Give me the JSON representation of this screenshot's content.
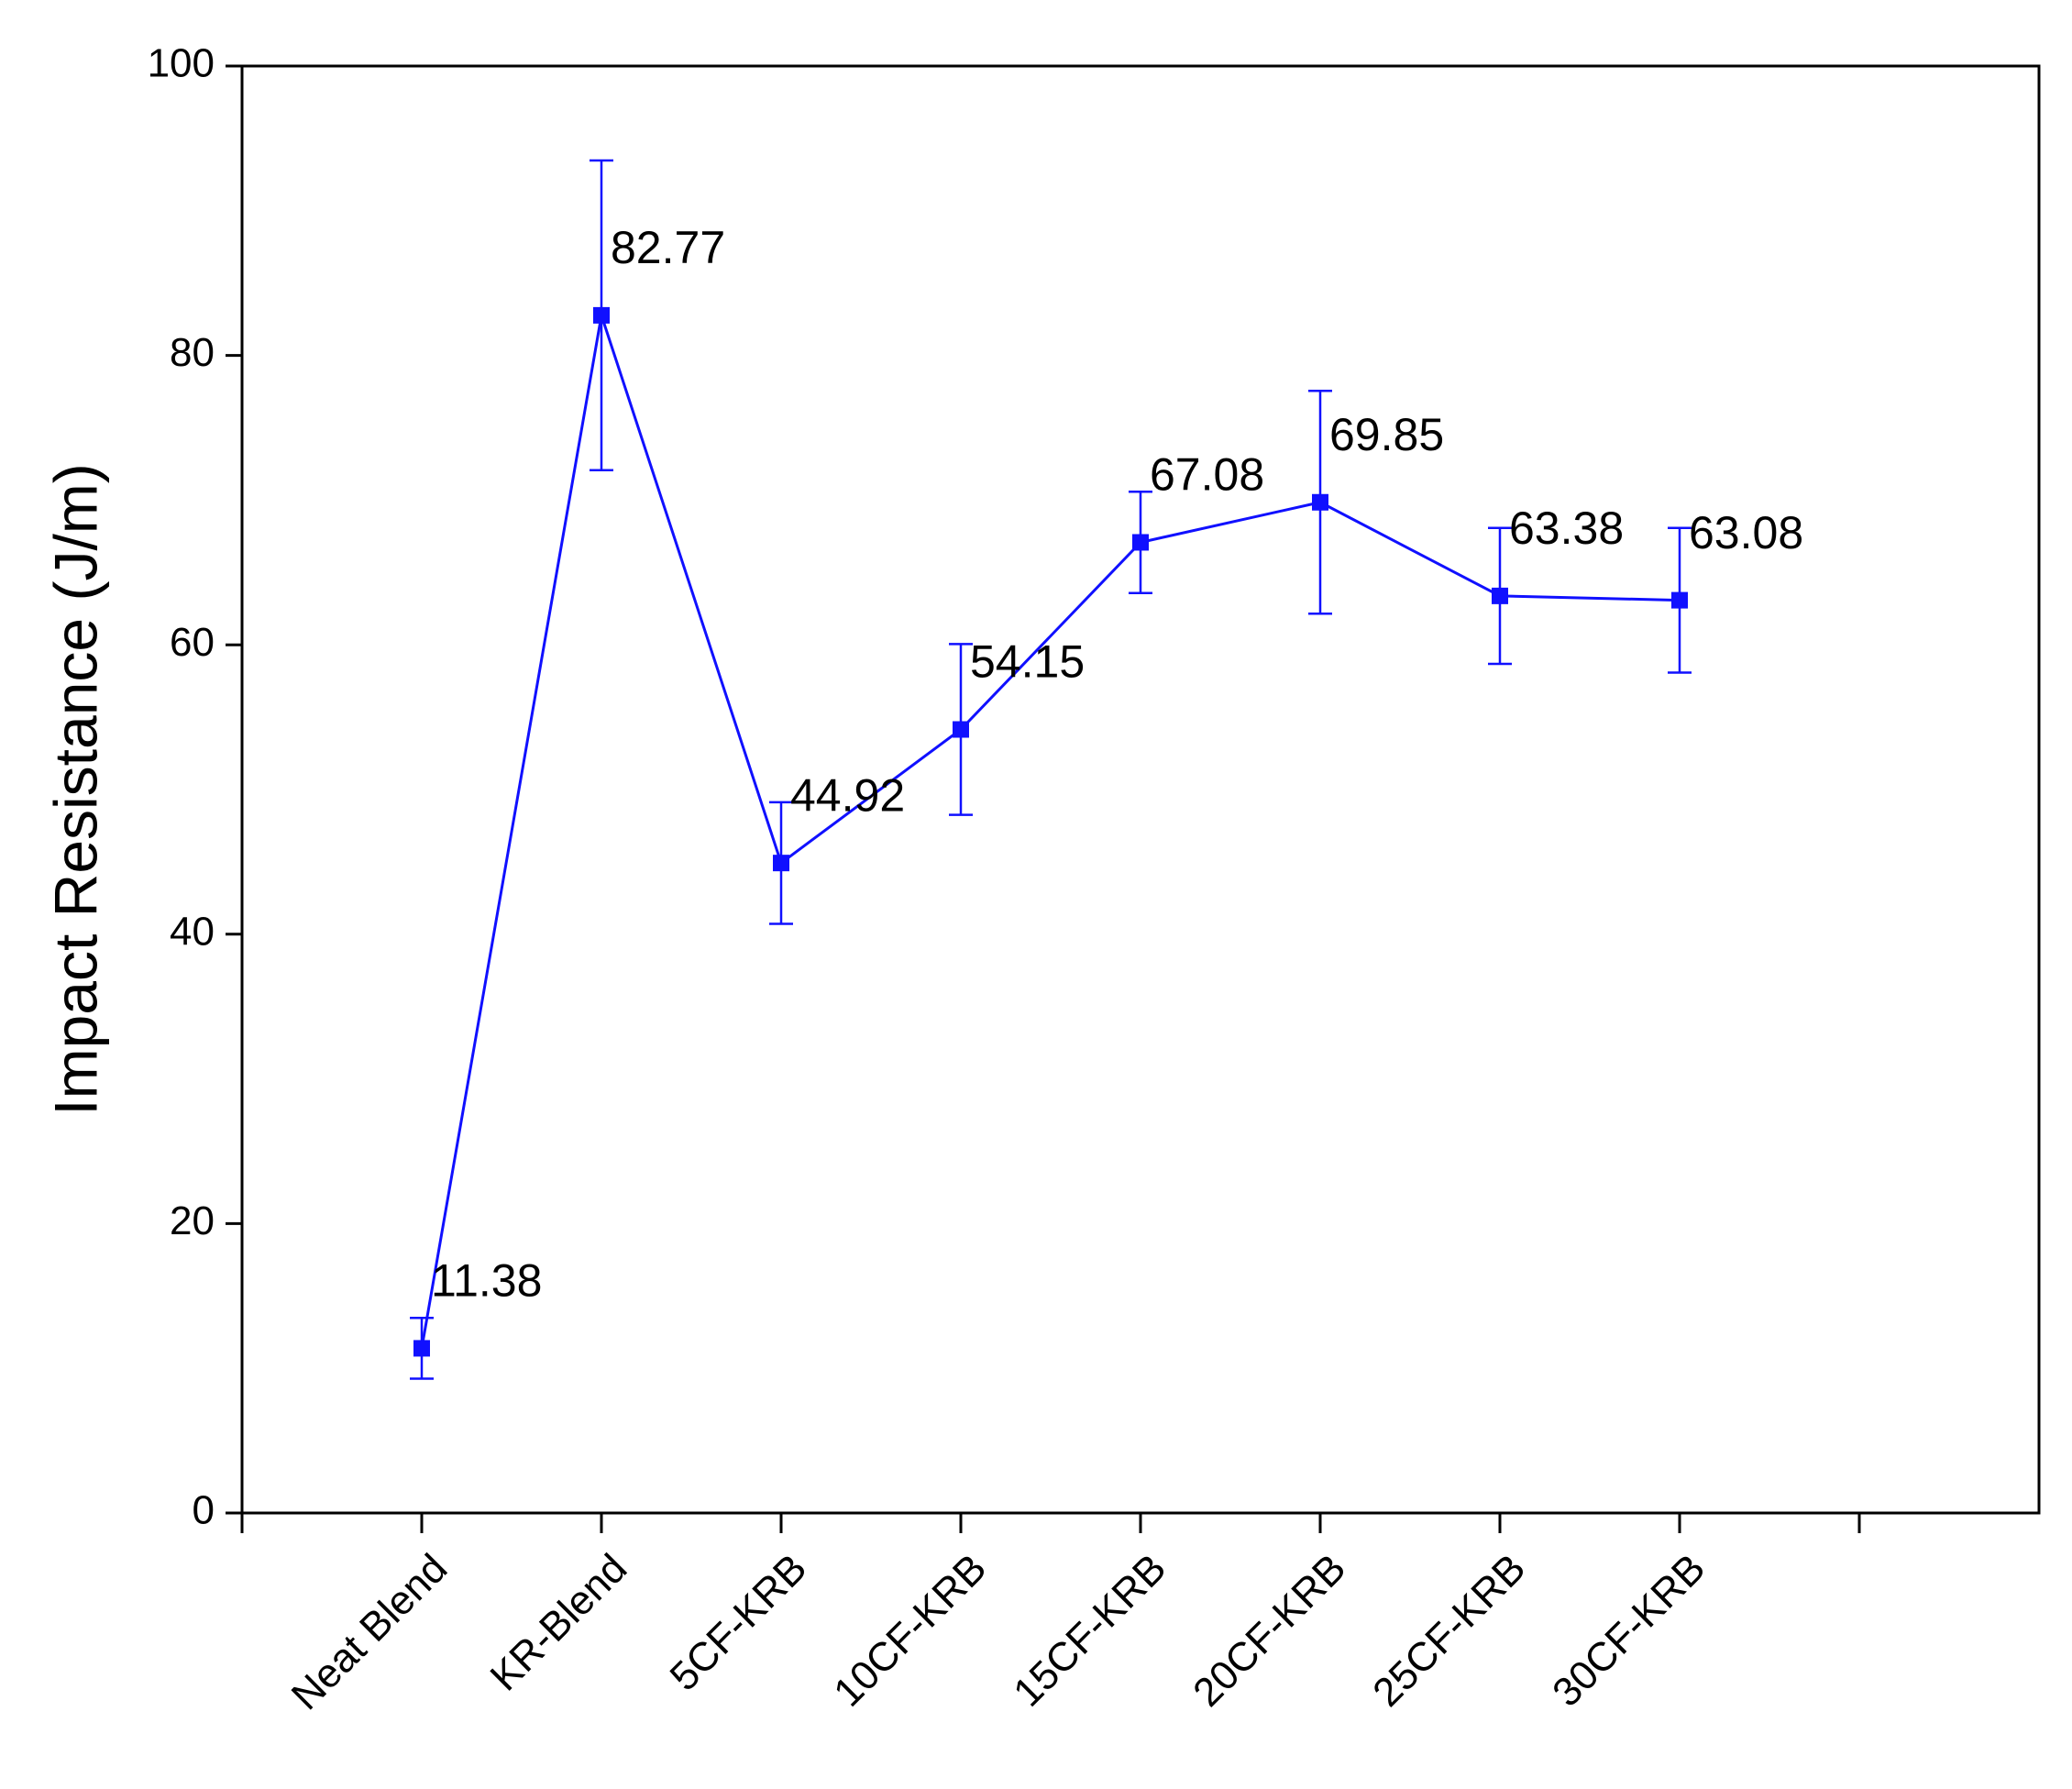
{
  "chart_data": {
    "type": "line",
    "y_label": "Impact Resistance (J/m)",
    "categories": [
      "Neat Blend",
      "KR-Blend",
      "5CF-KRB",
      "10CF-KRB",
      "15CF-KRB",
      "20CF-KRB",
      "25CF-KRB",
      "30CF-KRB"
    ],
    "values": [
      11.38,
      82.77,
      44.92,
      54.15,
      67.08,
      69.85,
      63.38,
      63.08
    ],
    "errors": [
      2.1,
      10.7,
      4.2,
      5.9,
      3.5,
      7.7,
      4.7,
      5.0
    ],
    "color": "#1010ff",
    "ylim": [
      0,
      100
    ],
    "yticks": [
      0,
      20,
      40,
      60,
      80,
      100
    ],
    "data_labels": true
  }
}
